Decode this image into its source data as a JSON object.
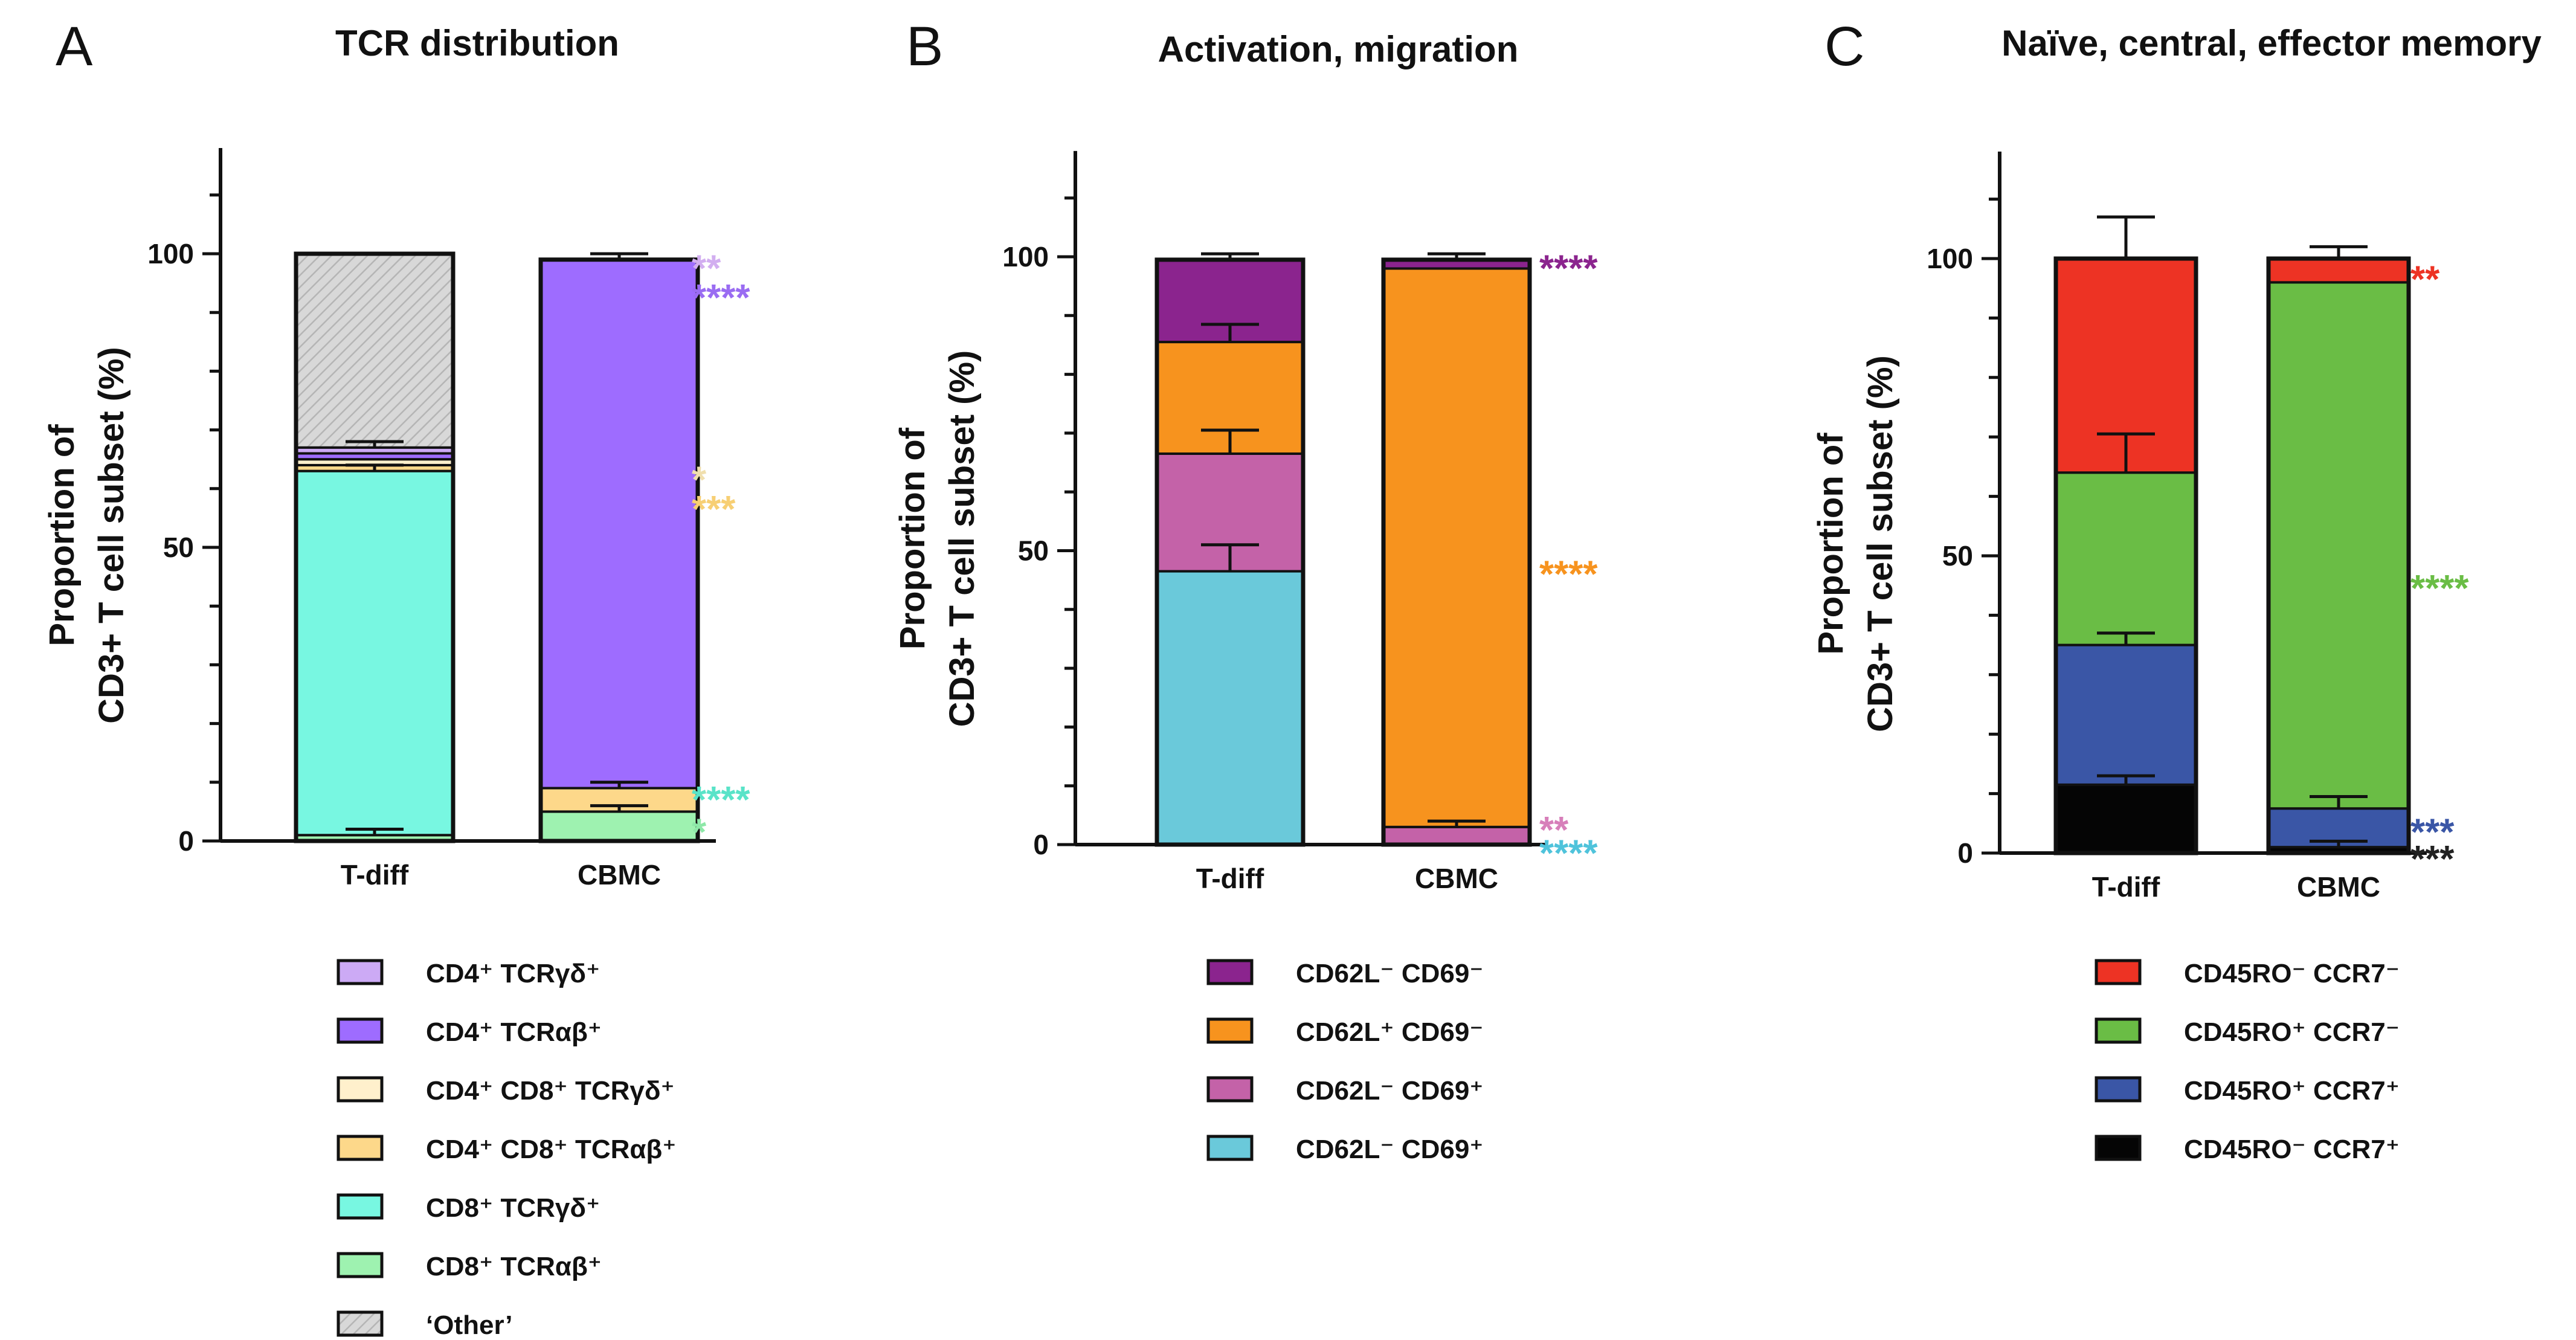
{
  "chart_data": [
    {
      "panel": "A",
      "type": "stacked_bar",
      "title": "TCR distribution",
      "ylabel_lines": [
        "Proportion of",
        "CD3+ T cell subset (%)"
      ],
      "ylim": [
        0,
        118
      ],
      "yticks": [
        0,
        50,
        100
      ],
      "categories": [
        "T-diff",
        "CBMC"
      ],
      "series": [
        {
          "name": "CD8⁺ TCRαβ⁺",
          "color": "#9ef2b0",
          "values": [
            1,
            5
          ],
          "errors": [
            1,
            1
          ]
        },
        {
          "name": "CD8⁺ TCRγδ⁺",
          "color": "#78f7e1",
          "values": [
            62,
            0
          ],
          "errors": [
            1,
            0
          ]
        },
        {
          "name": "CD4⁺ CD8⁺ TCRαβ⁺",
          "color": "#fdd88a",
          "values": [
            1,
            4
          ],
          "errors": [
            0,
            1
          ]
        },
        {
          "name": "CD4⁺ CD8⁺ TCRγδ⁺",
          "color": "#fff0cc",
          "values": [
            1,
            0
          ],
          "errors": [
            0,
            0
          ]
        },
        {
          "name": "CD4⁺ TCRαβ⁺",
          "color": "#9e6cff",
          "values": [
            1,
            90
          ],
          "errors": [
            0,
            1
          ]
        },
        {
          "name": "CD4⁺ TCRγδ⁺",
          "color": "#ccaaf5",
          "values": [
            1,
            0
          ],
          "errors": [
            1,
            0
          ]
        },
        {
          "name": "‘Other’",
          "color": "#d6d6d6",
          "hatch": true,
          "values": [
            33,
            0
          ],
          "errors": [
            0,
            0
          ]
        }
      ],
      "significance": [
        {
          "text": "**",
          "y": 98,
          "color": "#d2aef0"
        },
        {
          "text": "****",
          "y": 93,
          "color": "#9a6cf2"
        },
        {
          "text": "*",
          "y": 62,
          "color": "#f0dfae"
        },
        {
          "text": "***",
          "y": 57,
          "color": "#f7cf74"
        },
        {
          "text": "****",
          "y": 7.5,
          "color": "#59e3c8"
        },
        {
          "text": "*",
          "y": 2,
          "color": "#8ee8a8"
        }
      ],
      "legend": [
        "CD4⁺ TCRγδ⁺",
        "CD4⁺ TCRαβ⁺",
        "CD4⁺ CD8⁺ TCRγδ⁺",
        "CD4⁺ CD8⁺ TCRαβ⁺",
        "CD8⁺ TCRγδ⁺",
        "CD8⁺ TCRαβ⁺",
        "‘Other’"
      ]
    },
    {
      "panel": "B",
      "type": "stacked_bar",
      "title": "Activation, migration",
      "ylabel_lines": [
        "Proportion of",
        "CD3+ T cell subset (%)"
      ],
      "ylim": [
        0,
        118
      ],
      "yticks": [
        0,
        50,
        100
      ],
      "categories": [
        "T-diff",
        "CBMC"
      ],
      "series": [
        {
          "name": "CD62L⁻ CD69⁺",
          "color": "#6ac9da",
          "values": [
            46.5,
            0
          ],
          "errors": [
            4.5,
            0
          ]
        },
        {
          "name": "CD62L⁻ CD69⁺",
          "color": "#c462a8",
          "values": [
            20,
            3
          ],
          "errors": [
            4,
            1
          ]
        },
        {
          "name": "CD62L⁺ CD69⁻",
          "color": "#f7931e",
          "values": [
            19,
            95
          ],
          "errors": [
            3,
            0
          ]
        },
        {
          "name": "CD62L⁻ CD69⁻",
          "color": "#8b248e",
          "values": [
            14,
            1.5
          ],
          "errors": [
            1,
            1
          ]
        }
      ],
      "significance": [
        {
          "text": "****",
          "y": 98.5,
          "color": "#8b248e"
        },
        {
          "text": "****",
          "y": 46.5,
          "color": "#f7931e"
        },
        {
          "text": "**",
          "y": 3,
          "color": "#d77fba"
        },
        {
          "text": "****",
          "y": -1,
          "color": "#4fc3db"
        }
      ],
      "legend": [
        "CD62L⁻ CD69⁻",
        "CD62L⁺ CD69⁻",
        "CD62L⁻ CD69⁺",
        "CD62L⁻ CD69⁺"
      ]
    },
    {
      "panel": "C",
      "type": "stacked_bar",
      "title": "Naïve, central, effector memory",
      "ylabel_lines": [
        "Proportion of",
        "CD3+ T cell subset (%)"
      ],
      "ylim": [
        0,
        118
      ],
      "yticks": [
        0,
        50,
        100
      ],
      "categories": [
        "T-diff",
        "CBMC"
      ],
      "series": [
        {
          "name": "CD45RO⁻ CCR7⁺",
          "color": "#050505",
          "values": [
            11.5,
            1
          ],
          "errors": [
            1.5,
            1
          ]
        },
        {
          "name": "CD45RO⁺ CCR7⁺",
          "color": "#3a56a6",
          "values": [
            23.5,
            6.5
          ],
          "errors": [
            2,
            2
          ]
        },
        {
          "name": "CD45RO⁺ CCR7⁻",
          "color": "#6abd45",
          "values": [
            29,
            88.5
          ],
          "errors": [
            6.5,
            0
          ]
        },
        {
          "name": "CD45RO⁻ CCR7⁻",
          "color": "#ed3324",
          "values": [
            36,
            4
          ],
          "errors": [
            7,
            2
          ]
        }
      ],
      "significance": [
        {
          "text": "**",
          "y": 97,
          "color": "#ed3324"
        },
        {
          "text": "****",
          "y": 45,
          "color": "#6abd45"
        },
        {
          "text": "***",
          "y": 4,
          "color": "#3a56a6"
        },
        {
          "text": "***",
          "y": -0.5,
          "color": "#222222"
        }
      ],
      "legend": [
        "CD45RO⁻ CCR7⁻",
        "CD45RO⁺ CCR7⁻",
        "CD45RO⁺ CCR7⁺",
        "CD45RO⁻ CCR7⁺"
      ]
    }
  ]
}
